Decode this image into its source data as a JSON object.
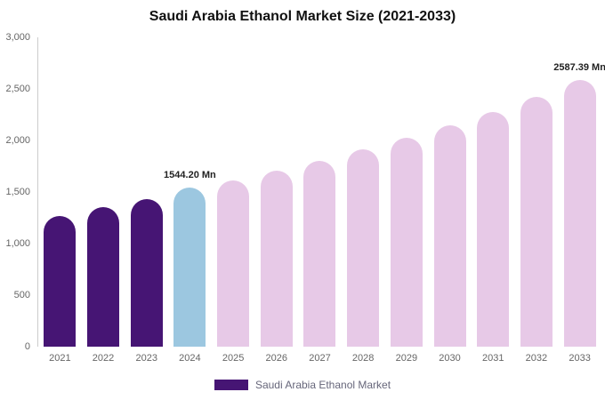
{
  "chart_data": {
    "type": "bar",
    "title": "Saudi Arabia Ethanol Market Size (2021-2033)",
    "legend": "Saudi Arabia Ethanol Market",
    "categories": [
      "2021",
      "2022",
      "2023",
      "2024",
      "2025",
      "2026",
      "2027",
      "2028",
      "2029",
      "2030",
      "2031",
      "2032",
      "2033"
    ],
    "values": [
      1270,
      1355,
      1430,
      1544.2,
      1610,
      1705,
      1800,
      1910,
      2025,
      2150,
      2275,
      2420,
      2587.39
    ],
    "y_ticks": [
      "0",
      "500",
      "1,000",
      "1,500",
      "2,000",
      "2,500",
      "3,000"
    ],
    "y_max": 3000,
    "data_labels": [
      {
        "year": "2024",
        "text": "1544.20 Mn"
      },
      {
        "year": "2033",
        "text": "2587.39 Mn"
      }
    ],
    "bar_colors": [
      "#461574",
      "#461574",
      "#461574",
      "#9cc7e0",
      "#e7c9e7",
      "#e7c9e7",
      "#e7c9e7",
      "#e7c9e7",
      "#e7c9e7",
      "#e7c9e7",
      "#e7c9e7",
      "#e7c9e7",
      "#e7c9e7"
    ],
    "colors": {
      "historical_bar": "#461574",
      "base_year_bar": "#9cc7e0",
      "forecast_bar": "#e7c9e7",
      "legend_swatch": "#461574",
      "axis_text": "#666666",
      "value_label_text": "#222222"
    },
    "layout": {
      "grid": false,
      "legend_position": "bottom"
    }
  }
}
